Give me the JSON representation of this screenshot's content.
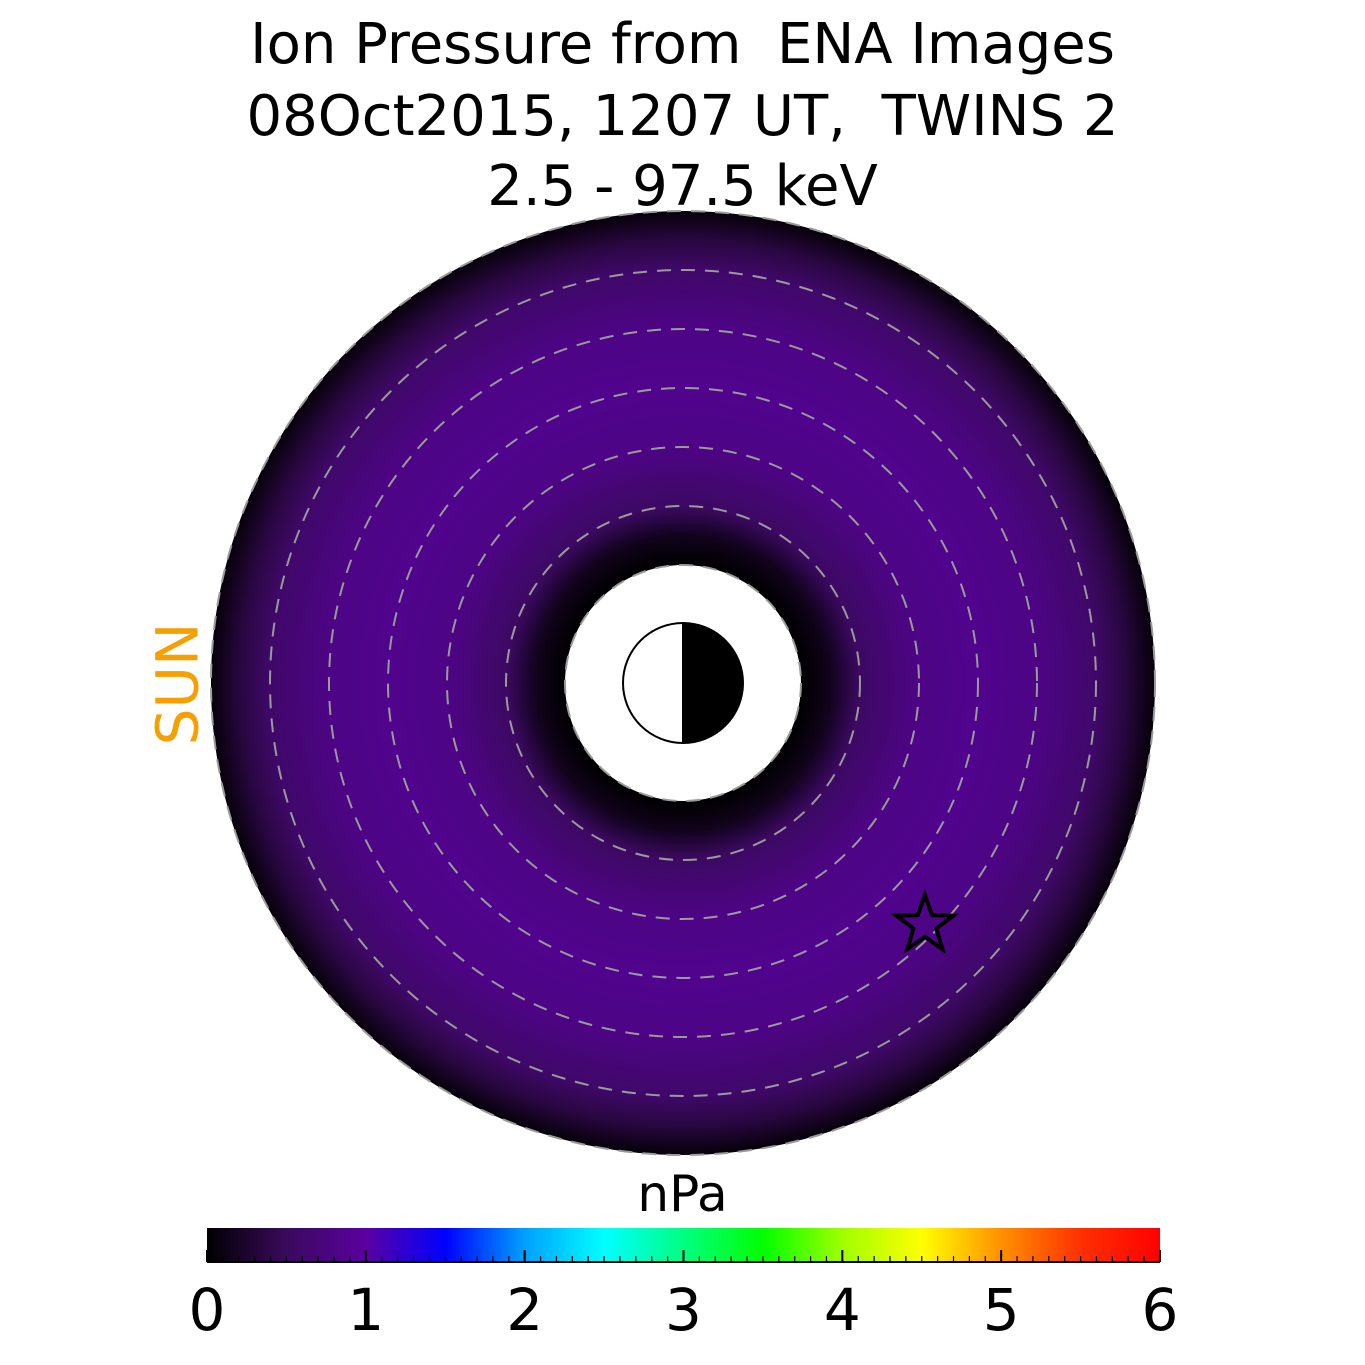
{
  "title": {
    "line1": "Ion Pressure from  ENA Images",
    "line2": "08Oct2015, 1207 UT,  TWINS 2",
    "line3": "2.5 - 97.5 keV"
  },
  "sun_label": "SUN",
  "colorbar": {
    "unit": "nPa",
    "min": 0,
    "max": 6,
    "ticks": [
      "0",
      "1",
      "2",
      "3",
      "4",
      "5",
      "6"
    ],
    "colormap": [
      "#000000",
      "#3a0a5c",
      "#5a00a0",
      "#0000ff",
      "#00a0ff",
      "#00ffff",
      "#00ff80",
      "#00ff00",
      "#a0ff00",
      "#ffff00",
      "#ff9000",
      "#ff3000",
      "#ff0000"
    ]
  },
  "chart_data": {
    "type": "heatmap",
    "projection": "polar equatorial plane",
    "inner_boundary_RE": 2,
    "outer_boundary_RE": 8,
    "dashed_circles_RE": [
      2,
      3,
      4,
      5,
      6,
      7,
      8
    ],
    "sun_direction": "left",
    "values_nPa": {
      "radial_profile_RE": [
        2.0,
        2.5,
        3.0,
        4.0,
        5.0,
        6.0,
        7.0,
        7.5,
        8.0
      ],
      "pressure": [
        0.0,
        0.15,
        0.55,
        0.8,
        0.85,
        0.8,
        0.6,
        0.35,
        0.05
      ],
      "max_pressure_nPa": 0.9
    },
    "marker": {
      "symbol": "star",
      "x_RE": 4.1,
      "y_RE": -4.1,
      "meaning": "pressure maximum"
    }
  }
}
